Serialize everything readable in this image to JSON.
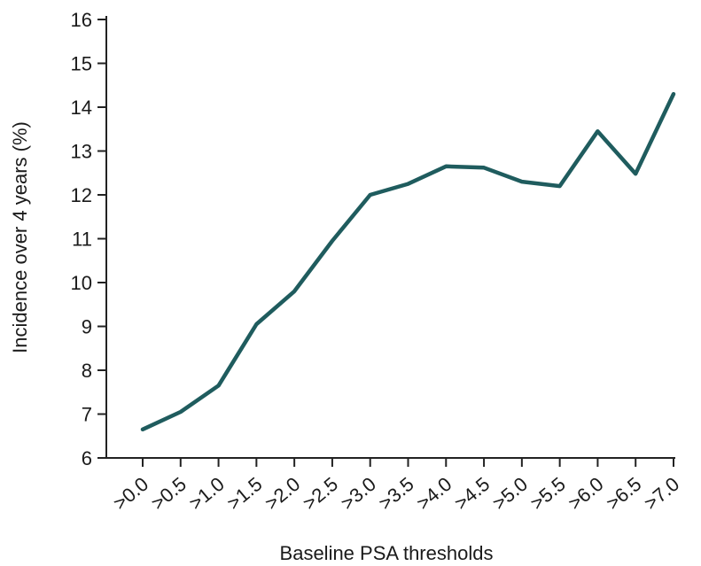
{
  "chart_data": {
    "type": "line",
    "title": "",
    "xlabel": "Baseline PSA thresholds",
    "ylabel": "Incidence over 4 years (%)",
    "categories": [
      ">0.0",
      ">0.5",
      ">1.0",
      ">1.5",
      ">2.0",
      ">2.5",
      ">3.0",
      ">3.5",
      ">4.0",
      ">4.5",
      ">5.0",
      ">5.5",
      ">6.0",
      ">6.5",
      ">7.0"
    ],
    "series": [
      {
        "values": [
          6.65,
          7.05,
          7.65,
          9.05,
          9.8,
          10.95,
          12.0,
          12.25,
          12.65,
          12.62,
          12.3,
          12.2,
          13.45,
          12.48,
          14.3
        ]
      }
    ],
    "yticks": [
      "6",
      "7",
      "8",
      "9",
      "10",
      "11",
      "12",
      "13",
      "14",
      "15",
      "16"
    ],
    "ylim": [
      6,
      16
    ],
    "grid": false,
    "line_color": "#1f5c5e"
  }
}
